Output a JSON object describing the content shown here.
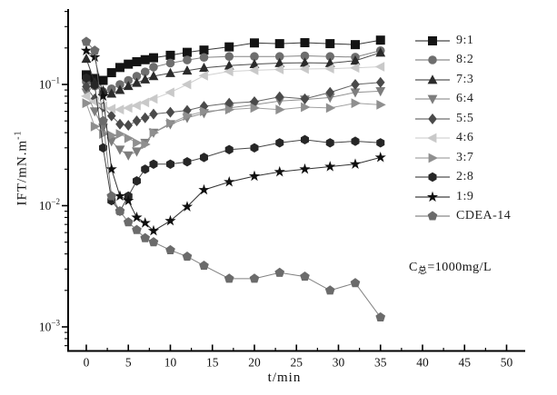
{
  "figure": {
    "ylabel": "IFT/mN.m",
    "ylabel_sup": "-1",
    "xlabel": "t/min",
    "annotation": {
      "main": "C",
      "sub": "总",
      "rest": "=1000mg/L"
    }
  },
  "chart_data": {
    "type": "line",
    "title": "",
    "xlabel": "t/min",
    "ylabel": "IFT/mN.m^-1 (log scale)",
    "x_scale": "linear",
    "y_scale": "log",
    "xlim": [
      -2.16,
      52.0
    ],
    "ylim": [
      0.000633,
      0.4185
    ],
    "x_ticks": [
      0,
      5,
      10,
      15,
      20,
      25,
      30,
      35,
      40,
      45,
      50
    ],
    "x_minor_step": 2.5,
    "y_ticks": [
      0.1,
      0.01,
      0.001
    ],
    "grid": false,
    "legend_position": "right",
    "annotation": "C总=1000mg/L",
    "x": [
      0,
      1,
      2,
      3,
      4,
      5,
      6,
      7,
      8,
      10,
      12,
      14,
      17,
      20,
      23,
      26,
      29,
      32,
      35
    ],
    "series": [
      {
        "name": "9:1",
        "marker": "square",
        "color": "#141414",
        "values": [
          0.12,
          0.112,
          0.108,
          0.125,
          0.138,
          0.147,
          0.154,
          0.16,
          0.166,
          0.174,
          0.184,
          0.192,
          0.204,
          0.22,
          0.217,
          0.221,
          0.217,
          0.213,
          0.232
        ]
      },
      {
        "name": "8:2",
        "marker": "circle",
        "color": "#6e6e6e",
        "values": [
          0.105,
          0.097,
          0.087,
          0.092,
          0.1,
          0.108,
          0.117,
          0.127,
          0.139,
          0.15,
          0.159,
          0.167,
          0.17,
          0.17,
          0.17,
          0.172,
          0.17,
          0.168,
          0.19
        ]
      },
      {
        "name": "7:3",
        "marker": "triangle-up",
        "color": "#2b2b2b",
        "values": [
          0.163,
          0.104,
          0.089,
          0.084,
          0.09,
          0.097,
          0.103,
          0.11,
          0.117,
          0.124,
          0.13,
          0.137,
          0.143,
          0.147,
          0.15,
          0.151,
          0.15,
          0.157,
          0.183
        ]
      },
      {
        "name": "6:4",
        "marker": "triangle-down",
        "color": "#7d7d7d",
        "values": [
          0.086,
          0.06,
          0.044,
          0.034,
          0.029,
          0.026,
          0.028,
          0.033,
          0.04,
          0.047,
          0.053,
          0.058,
          0.064,
          0.068,
          0.073,
          0.075,
          0.078,
          0.086,
          0.088
        ]
      },
      {
        "name": "5:5",
        "marker": "diamond",
        "color": "#4a4a4a",
        "values": [
          0.096,
          0.076,
          0.065,
          0.055,
          0.047,
          0.046,
          0.05,
          0.053,
          0.057,
          0.059,
          0.061,
          0.066,
          0.07,
          0.072,
          0.079,
          0.076,
          0.086,
          0.1,
          0.104
        ]
      },
      {
        "name": "4:6",
        "marker": "triangle-left",
        "color": "#c9c9c9",
        "values": [
          0.08,
          0.072,
          0.066,
          0.063,
          0.062,
          0.064,
          0.067,
          0.071,
          0.076,
          0.086,
          0.1,
          0.118,
          0.128,
          0.131,
          0.133,
          0.134,
          0.135,
          0.137,
          0.14
        ]
      },
      {
        "name": "3:7",
        "marker": "triangle-right",
        "color": "#8f8f8f",
        "values": [
          0.07,
          0.045,
          0.039,
          0.038,
          0.039,
          0.036,
          0.033,
          0.032,
          0.04,
          0.048,
          0.055,
          0.06,
          0.062,
          0.064,
          0.062,
          0.065,
          0.064,
          0.07,
          0.068
        ]
      },
      {
        "name": "2:8",
        "marker": "hexagon",
        "color": "#262626",
        "values": [
          0.113,
          0.099,
          0.03,
          0.011,
          0.009,
          0.012,
          0.016,
          0.02,
          0.022,
          0.022,
          0.023,
          0.025,
          0.029,
          0.03,
          0.033,
          0.035,
          0.033,
          0.034,
          0.033
        ]
      },
      {
        "name": "1:9",
        "marker": "star",
        "color": "#0f0f0f",
        "values": [
          0.19,
          0.168,
          0.08,
          0.02,
          0.012,
          0.011,
          0.008,
          0.0072,
          0.0062,
          0.0075,
          0.0098,
          0.0135,
          0.0157,
          0.0175,
          0.019,
          0.02,
          0.021,
          0.022,
          0.025
        ]
      },
      {
        "name": "CDEA-14",
        "marker": "pentagon",
        "color": "#6b6b6b",
        "values": [
          0.225,
          0.19,
          0.05,
          0.012,
          0.009,
          0.0073,
          0.0063,
          0.0054,
          0.005,
          0.0043,
          0.0038,
          0.0032,
          0.0025,
          0.0025,
          0.0028,
          0.0026,
          0.002,
          0.0023,
          0.0012
        ]
      }
    ]
  }
}
